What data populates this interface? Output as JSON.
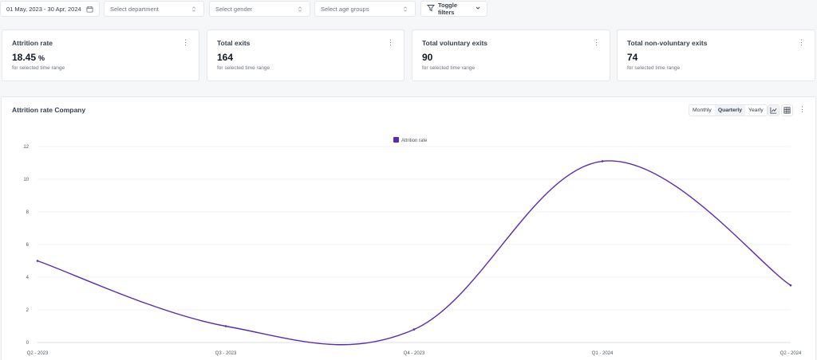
{
  "filters": {
    "date_range": "01 May, 2023 - 30 Apr, 2024",
    "department_placeholder": "Select department",
    "gender_placeholder": "Select gender",
    "age_placeholder": "Select age groups",
    "toggle_label": "Toggle filters"
  },
  "kpis": [
    {
      "title": "Attrition rate",
      "value": "18.45",
      "unit": "%",
      "sub": "for selected time range"
    },
    {
      "title": "Total exits",
      "value": "164",
      "unit": "",
      "sub": "for selected time range"
    },
    {
      "title": "Total voluntary exits",
      "value": "90",
      "unit": "",
      "sub": "for selected time range"
    },
    {
      "title": "Total non-voluntary exits",
      "value": "74",
      "unit": "",
      "sub": "for selected time range"
    }
  ],
  "panel": {
    "title": "Attrition rate Company",
    "periods": [
      "Monthly",
      "Quarterly",
      "Yearly"
    ],
    "active_period": "Quarterly"
  },
  "icons": {
    "date": "calendar-icon",
    "select": "chevron-updown-icon",
    "toggle": "filter-icon",
    "line_view": "line-chart-icon",
    "table_view": "table-icon",
    "menu": "kebab-icon"
  },
  "chart_data": {
    "type": "line",
    "categories": [
      "Q2 - 2023",
      "Q3 - 2023",
      "Q4 - 2023",
      "Q1 - 2024",
      "Q2 - 2024"
    ],
    "series": [
      {
        "name": "Attrition rate",
        "values": [
          5.0,
          1.0,
          0.8,
          11.1,
          3.5
        ],
        "color": "#5b2ab5"
      }
    ],
    "ylim": [
      0,
      12
    ],
    "yticks": [
      0,
      2,
      4,
      6,
      8,
      10,
      12
    ],
    "grid": true,
    "legend": "top-center"
  }
}
